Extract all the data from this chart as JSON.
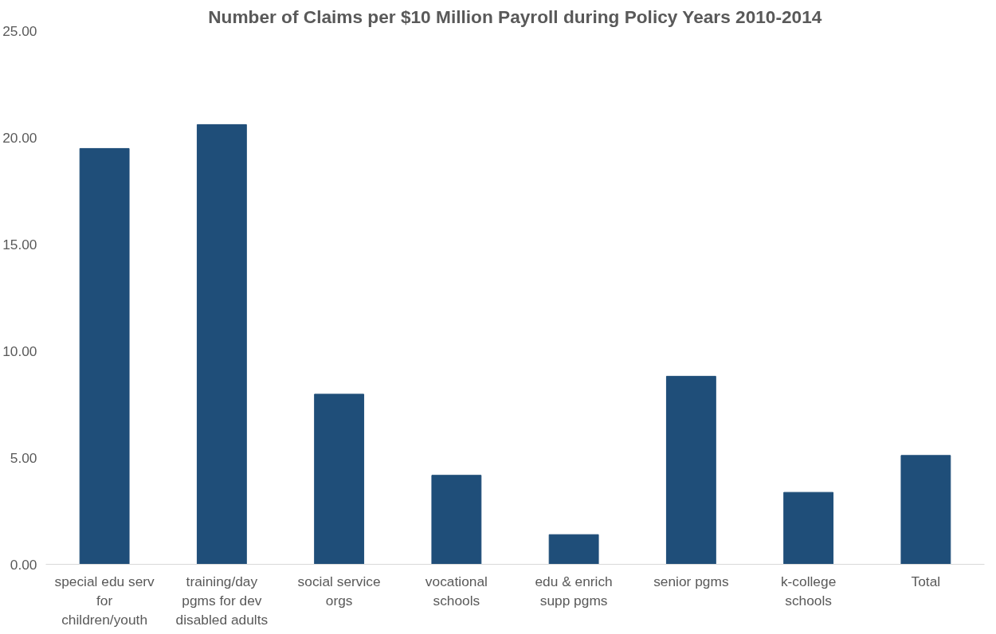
{
  "chart_data": {
    "type": "bar",
    "title": "Number of Claims per $10 Million Payroll during Policy Years 2010-2014",
    "categories": [
      "special edu serv for children/youth",
      "training/day pgms for dev disabled adults",
      "social service orgs",
      "vocational schools",
      "edu & enrich supp pgms",
      "senior pgms",
      "k-college schools",
      "Total"
    ],
    "values": [
      19.48,
      20.6,
      7.97,
      4.17,
      1.39,
      8.81,
      3.37,
      5.1
    ],
    "color": "#1f4e79",
    "ylim": [
      0,
      25
    ],
    "yticks": [
      {
        "value": 0,
        "label": "0.00"
      },
      {
        "value": 5,
        "label": "5.00"
      },
      {
        "value": 10,
        "label": "10.00"
      },
      {
        "value": 15,
        "label": "15.00"
      },
      {
        "value": 20,
        "label": "20.00"
      },
      {
        "value": 25,
        "label": "25.00"
      }
    ],
    "grid": false
  }
}
